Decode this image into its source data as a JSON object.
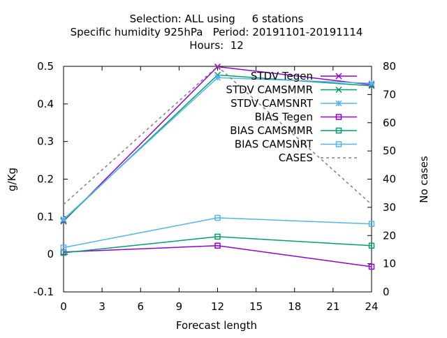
{
  "chart_data": {
    "type": "line",
    "title_lines": [
      "Selection: ALL using     6 stations",
      "Specific humidity 925hPa   Period: 20191101-20191114",
      "Hours:  12"
    ],
    "xlabel": "Forecast length",
    "ylabel": "g/Kg",
    "y2label": "No cases",
    "x_ticks": [
      0,
      3,
      6,
      9,
      12,
      15,
      18,
      21,
      24
    ],
    "y_ticks": [
      -0.1,
      0,
      0.1,
      0.2,
      0.3,
      0.4,
      0.5
    ],
    "y_tick_labels": [
      "-0.1",
      "0",
      "0.1",
      "0.2",
      "0.3",
      "0.4",
      "0.5"
    ],
    "y2_ticks": [
      0,
      10,
      20,
      30,
      40,
      50,
      60,
      70,
      80
    ],
    "xlim": [
      0,
      24
    ],
    "ylim": [
      -0.1,
      0.5
    ],
    "y2lim": [
      0,
      80
    ],
    "legend_position": "top-right",
    "series": [
      {
        "name": "STDV Tegen",
        "axis": "y",
        "marker": "x",
        "color": "#9400d3",
        "x": [
          0,
          12,
          24
        ],
        "values": [
          0.088,
          0.499,
          0.451
        ]
      },
      {
        "name": "STDV CAMSMMR",
        "axis": "y",
        "marker": "x",
        "color": "#009e73",
        "x": [
          0,
          12,
          24
        ],
        "values": [
          0.09,
          0.477,
          0.448
        ]
      },
      {
        "name": "STDV CAMSNRT",
        "axis": "y",
        "marker": "star",
        "color": "#56b4e9",
        "x": [
          0,
          12,
          24
        ],
        "values": [
          0.093,
          0.47,
          0.455
        ]
      },
      {
        "name": "BIAS Tegen",
        "axis": "y",
        "marker": "square",
        "color": "#9400d3",
        "x": [
          0,
          12,
          24
        ],
        "values": [
          0.006,
          0.023,
          -0.033
        ]
      },
      {
        "name": "BIAS CAMSMMR",
        "axis": "y",
        "marker": "square",
        "color": "#009e73",
        "x": [
          0,
          12,
          24
        ],
        "values": [
          0.004,
          0.047,
          0.023
        ]
      },
      {
        "name": "BIAS CAMSNRT",
        "axis": "y",
        "marker": "square",
        "color": "#56b4e9",
        "x": [
          0,
          12,
          24
        ],
        "values": [
          0.018,
          0.097,
          0.081
        ]
      },
      {
        "name": "CASES",
        "axis": "y2",
        "marker": "none",
        "dashed": true,
        "color": "#808080",
        "x": [
          0,
          12,
          24
        ],
        "values": [
          31,
          80,
          31
        ]
      }
    ]
  }
}
